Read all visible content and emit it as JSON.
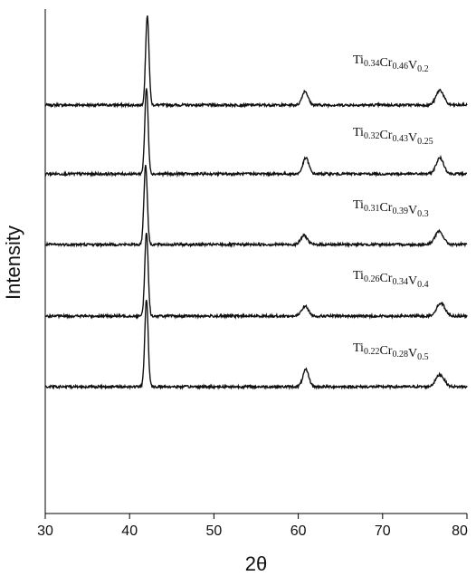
{
  "chart_data": {
    "type": "line",
    "xlabel": "2θ",
    "ylabel": "Intensity",
    "xlim": [
      30,
      80
    ],
    "xticks": [
      "30",
      "40",
      "50",
      "60",
      "70",
      "80"
    ],
    "grid": false,
    "series": [
      {
        "name": "Ti0.34Cr0.46V0.2",
        "label_parts": [
          {
            "t": "Ti",
            "s": "0.34"
          },
          {
            "t": "Cr",
            "s": "0.46"
          },
          {
            "t": "V",
            "s": "0.2"
          }
        ],
        "peaks": [
          {
            "x": 42.1,
            "h": 0.9,
            "w": 0.2
          },
          {
            "x": 60.8,
            "h": 0.14,
            "w": 0.35
          },
          {
            "x": 76.8,
            "h": 0.15,
            "w": 0.45
          }
        ]
      },
      {
        "name": "Ti0.32Cr0.43V0.25",
        "label_parts": [
          {
            "t": "Ti",
            "s": "0.32"
          },
          {
            "t": "Cr",
            "s": "0.43"
          },
          {
            "t": "V",
            "s": "0.25"
          }
        ],
        "peaks": [
          {
            "x": 42.0,
            "h": 0.86,
            "w": 0.2
          },
          {
            "x": 60.9,
            "h": 0.16,
            "w": 0.35
          },
          {
            "x": 76.8,
            "h": 0.16,
            "w": 0.45
          }
        ]
      },
      {
        "name": "Ti0.31Cr0.39V0.3",
        "label_parts": [
          {
            "t": "Ti",
            "s": "0.31"
          },
          {
            "t": "Cr",
            "s": "0.39"
          },
          {
            "t": "V",
            "s": "0.3"
          }
        ],
        "peaks": [
          {
            "x": 41.9,
            "h": 0.8,
            "w": 0.2
          },
          {
            "x": 60.7,
            "h": 0.09,
            "w": 0.4
          },
          {
            "x": 76.7,
            "h": 0.13,
            "w": 0.5
          }
        ]
      },
      {
        "name": "Ti0.26Cr0.34V0.4",
        "label_parts": [
          {
            "t": "Ti",
            "s": "0.26"
          },
          {
            "t": "Cr",
            "s": "0.34"
          },
          {
            "t": "V",
            "s": "0.4"
          }
        ],
        "peaks": [
          {
            "x": 42.0,
            "h": 0.84,
            "w": 0.2
          },
          {
            "x": 60.8,
            "h": 0.1,
            "w": 0.4
          },
          {
            "x": 76.9,
            "h": 0.13,
            "w": 0.5
          }
        ]
      },
      {
        "name": "Ti0.22Cr0.28V0.5",
        "label_parts": [
          {
            "t": "Ti",
            "s": "0.22"
          },
          {
            "t": "Cr",
            "s": "0.28"
          },
          {
            "t": "V",
            "s": "0.5"
          }
        ],
        "peaks": [
          {
            "x": 42.0,
            "h": 0.88,
            "w": 0.2
          },
          {
            "x": 60.9,
            "h": 0.17,
            "w": 0.35
          },
          {
            "x": 76.8,
            "h": 0.12,
            "w": 0.5
          }
        ]
      }
    ]
  }
}
